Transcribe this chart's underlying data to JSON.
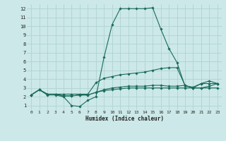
{
  "xlabel": "Humidex (Indice chaleur)",
  "bg_color": "#cce8e8",
  "grid_color": "#aacfcf",
  "line_color": "#1a6b5a",
  "xlim": [
    -0.5,
    23.5
  ],
  "ylim": [
    0.5,
    12.5
  ],
  "yticks": [
    1,
    2,
    3,
    4,
    5,
    6,
    7,
    8,
    9,
    10,
    11,
    12
  ],
  "xticks": [
    0,
    1,
    2,
    3,
    4,
    5,
    6,
    7,
    8,
    9,
    10,
    11,
    12,
    13,
    14,
    15,
    16,
    17,
    18,
    19,
    20,
    21,
    22,
    23
  ],
  "lines": [
    [
      2.2,
      2.8,
      2.2,
      2.2,
      2.0,
      1.0,
      0.9,
      1.6,
      2.0,
      6.5,
      10.2,
      12.0,
      12.0,
      12.0,
      12.0,
      12.1,
      9.7,
      7.5,
      5.9,
      3.2,
      3.1,
      3.5,
      3.5,
      3.5
    ],
    [
      2.2,
      2.8,
      2.3,
      2.3,
      2.3,
      2.3,
      2.3,
      2.3,
      3.6,
      4.1,
      4.3,
      4.5,
      4.6,
      4.7,
      4.8,
      5.0,
      5.2,
      5.3,
      5.3,
      3.3,
      3.0,
      3.5,
      3.8,
      3.5
    ],
    [
      2.2,
      2.8,
      2.3,
      2.3,
      2.1,
      2.1,
      2.2,
      2.2,
      2.5,
      2.8,
      3.0,
      3.1,
      3.2,
      3.2,
      3.2,
      3.3,
      3.3,
      3.2,
      3.2,
      3.3,
      3.0,
      3.0,
      3.2,
      3.5
    ],
    [
      2.2,
      2.8,
      2.3,
      2.3,
      2.1,
      2.1,
      2.2,
      2.2,
      2.5,
      2.7,
      2.8,
      2.9,
      3.0,
      3.0,
      3.0,
      3.0,
      3.0,
      3.0,
      3.0,
      3.0,
      3.0,
      3.0,
      3.0,
      3.0
    ]
  ]
}
